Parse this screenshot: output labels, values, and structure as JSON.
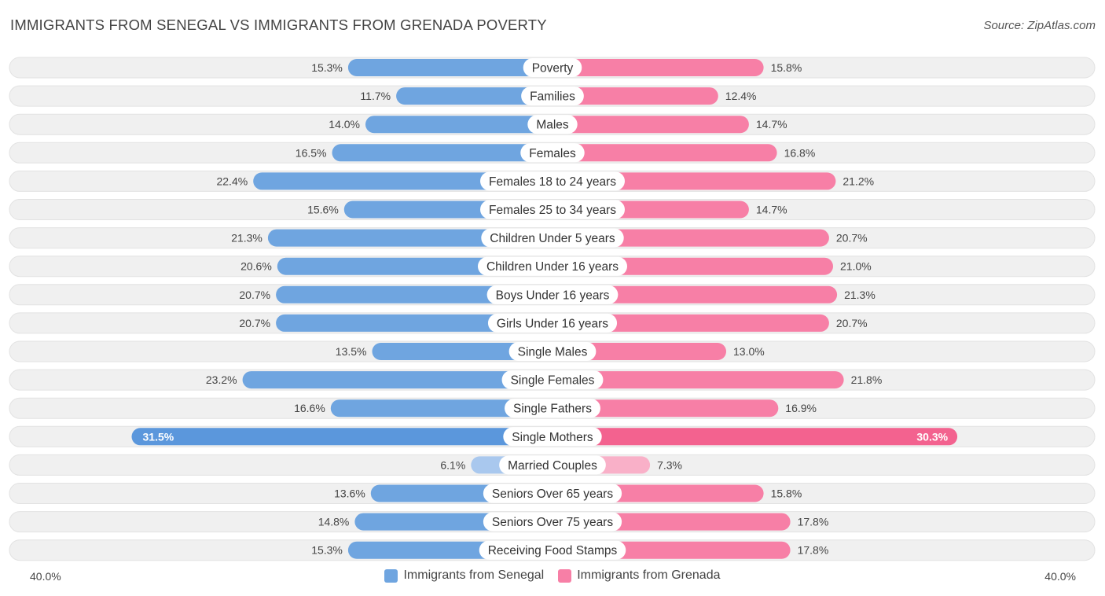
{
  "title": "IMMIGRANTS FROM SENEGAL VS IMMIGRANTS FROM GRENADA POVERTY",
  "source": "Source: ZipAtlas.com",
  "colors": {
    "left": "#6fa5e0",
    "left_light": "#a9c8ee",
    "right": "#f77fa6",
    "right_light": "#f9b0c8",
    "row_bg": "#f0f0f0"
  },
  "chart_data": {
    "type": "bar",
    "orientation": "horizontal-diverging",
    "xlim": [
      -40,
      40
    ],
    "axis_left_label": "40.0%",
    "axis_right_label": "40.0%",
    "legend": [
      "Immigrants from Senegal",
      "Immigrants from Grenada"
    ],
    "categories": [
      "Poverty",
      "Families",
      "Males",
      "Females",
      "Females 18 to 24 years",
      "Females 25 to 34 years",
      "Children Under 5 years",
      "Children Under 16 years",
      "Boys Under 16 years",
      "Girls Under 16 years",
      "Single Males",
      "Single Females",
      "Single Fathers",
      "Single Mothers",
      "Married Couples",
      "Seniors Over 65 years",
      "Seniors Over 75 years",
      "Receiving Food Stamps"
    ],
    "series": [
      {
        "name": "Immigrants from Senegal",
        "values": [
          15.3,
          11.7,
          14.0,
          16.5,
          22.4,
          15.6,
          21.3,
          20.6,
          20.7,
          20.7,
          13.5,
          23.2,
          16.6,
          31.5,
          6.1,
          13.6,
          14.8,
          15.3
        ],
        "labels": [
          "15.3%",
          "11.7%",
          "14.0%",
          "16.5%",
          "22.4%",
          "15.6%",
          "21.3%",
          "20.6%",
          "20.7%",
          "20.7%",
          "13.5%",
          "23.2%",
          "16.6%",
          "31.5%",
          "6.1%",
          "13.6%",
          "14.8%",
          "15.3%"
        ]
      },
      {
        "name": "Immigrants from Grenada",
        "values": [
          15.8,
          12.4,
          14.7,
          16.8,
          21.2,
          14.7,
          20.7,
          21.0,
          21.3,
          20.7,
          13.0,
          21.8,
          16.9,
          30.3,
          7.3,
          15.8,
          17.8,
          17.8
        ],
        "labels": [
          "15.8%",
          "12.4%",
          "14.7%",
          "16.8%",
          "21.2%",
          "14.7%",
          "20.7%",
          "21.0%",
          "21.3%",
          "20.7%",
          "13.0%",
          "21.8%",
          "16.9%",
          "30.3%",
          "7.3%",
          "15.8%",
          "17.8%",
          "17.8%"
        ]
      }
    ]
  }
}
